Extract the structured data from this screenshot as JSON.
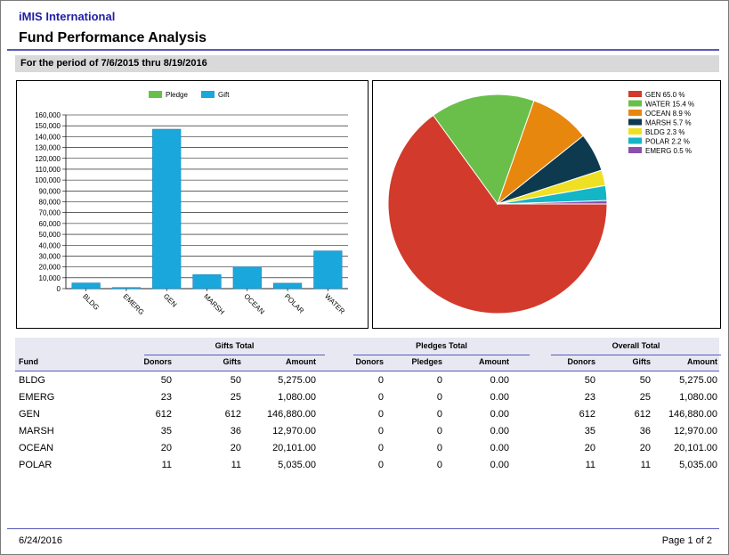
{
  "header": {
    "org": "iMIS International",
    "title": "Fund Performance Analysis",
    "period": "For the period of 7/6/2015 thru 8/19/2016"
  },
  "chart_data": [
    {
      "type": "bar",
      "categories": [
        "BLDG",
        "EMERG",
        "GEN",
        "MARSH",
        "OCEAN",
        "POLAR",
        "WATER"
      ],
      "series": [
        {
          "name": "Pledge",
          "color": "#6abf4b",
          "values": [
            0,
            0,
            0,
            0,
            0,
            0,
            0
          ]
        },
        {
          "name": "Gift",
          "color": "#1aa7dc",
          "values": [
            5275,
            1080,
            146880,
            12970,
            20101,
            5035,
            34800
          ]
        }
      ],
      "ylim": [
        0,
        160000
      ],
      "yticks": [
        "0",
        "10,000",
        "20,000",
        "30,000",
        "40,000",
        "50,000",
        "60,000",
        "70,000",
        "80,000",
        "90,000",
        "100,000",
        "110,000",
        "120,000",
        "130,000",
        "140,000",
        "150,000",
        "160,000"
      ],
      "legend": "top",
      "grid": true
    },
    {
      "type": "pie",
      "slices": [
        {
          "label": "GEN 65.0 %",
          "value": 65.0,
          "color": "#d23a2b"
        },
        {
          "label": "WATER 15.4 %",
          "value": 15.4,
          "color": "#6abf4b"
        },
        {
          "label": "OCEAN 8.9 %",
          "value": 8.9,
          "color": "#e8870e"
        },
        {
          "label": "MARSH 5.7 %",
          "value": 5.7,
          "color": "#0e3a4f"
        },
        {
          "label": "BLDG 2.3 %",
          "value": 2.3,
          "color": "#f0e024"
        },
        {
          "label": "POLAR 2.2 %",
          "value": 2.2,
          "color": "#14b5c6"
        },
        {
          "label": "EMERG 0.5 %",
          "value": 0.5,
          "color": "#8b4fb0"
        }
      ],
      "legend": "top-right"
    }
  ],
  "table": {
    "groups": [
      "Gifts Total",
      "Pledges Total",
      "Overall Total"
    ],
    "columns": [
      "Fund",
      "Donors",
      "Gifts",
      "Amount",
      "Donors",
      "Pledges",
      "Amount",
      "Donors",
      "Gifts",
      "Amount"
    ],
    "rows": [
      [
        "BLDG",
        "50",
        "50",
        "5,275.00",
        "0",
        "0",
        "0.00",
        "50",
        "50",
        "5,275.00"
      ],
      [
        "EMERG",
        "23",
        "25",
        "1,080.00",
        "0",
        "0",
        "0.00",
        "23",
        "25",
        "1,080.00"
      ],
      [
        "GEN",
        "612",
        "612",
        "146,880.00",
        "0",
        "0",
        "0.00",
        "612",
        "612",
        "146,880.00"
      ],
      [
        "MARSH",
        "35",
        "36",
        "12,970.00",
        "0",
        "0",
        "0.00",
        "35",
        "36",
        "12,970.00"
      ],
      [
        "OCEAN",
        "20",
        "20",
        "20,101.00",
        "0",
        "0",
        "0.00",
        "20",
        "20",
        "20,101.00"
      ],
      [
        "POLAR",
        "11",
        "11",
        "5,035.00",
        "0",
        "0",
        "0.00",
        "11",
        "11",
        "5,035.00"
      ]
    ]
  },
  "footer": {
    "date": "6/24/2016",
    "page": "Page 1 of  2"
  }
}
